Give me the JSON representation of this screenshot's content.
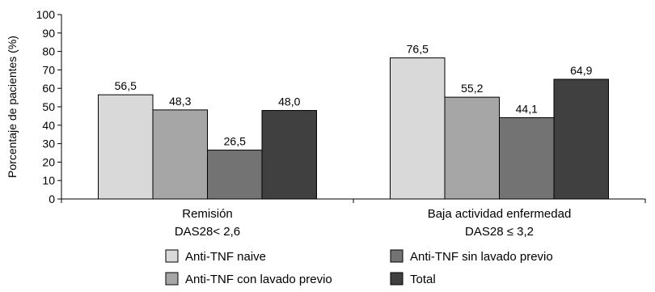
{
  "chart_data": {
    "type": "bar",
    "ylabel": "Porcentaje de pacientes (%)",
    "ylim": [
      0,
      100
    ],
    "yticks": [
      0,
      10,
      20,
      30,
      40,
      50,
      60,
      70,
      80,
      90,
      100
    ],
    "grid": false,
    "legend_position": "bottom",
    "categories": [
      {
        "line1": "Remisión",
        "line2": "DAS28< 2,6"
      },
      {
        "line1": "Baja actividad enfermedad",
        "line2": "DAS28 ≤ 3,2"
      }
    ],
    "series": [
      {
        "name": "Anti-TNF naive",
        "color": "#d9d9d9",
        "values": [
          56.5,
          76.5
        ],
        "labels": [
          "56,5",
          "76,5"
        ]
      },
      {
        "name": "Anti-TNF con lavado previo",
        "color": "#a6a6a6",
        "values": [
          48.3,
          55.2
        ],
        "labels": [
          "48,3",
          "55,2"
        ]
      },
      {
        "name": "Anti-TNF sin lavado previo",
        "color": "#737373",
        "values": [
          26.5,
          44.1
        ],
        "labels": [
          "26,5",
          "44,1"
        ]
      },
      {
        "name": "Total",
        "color": "#404040",
        "values": [
          48.0,
          64.9
        ],
        "labels": [
          "48,0",
          "64,9"
        ]
      }
    ]
  }
}
